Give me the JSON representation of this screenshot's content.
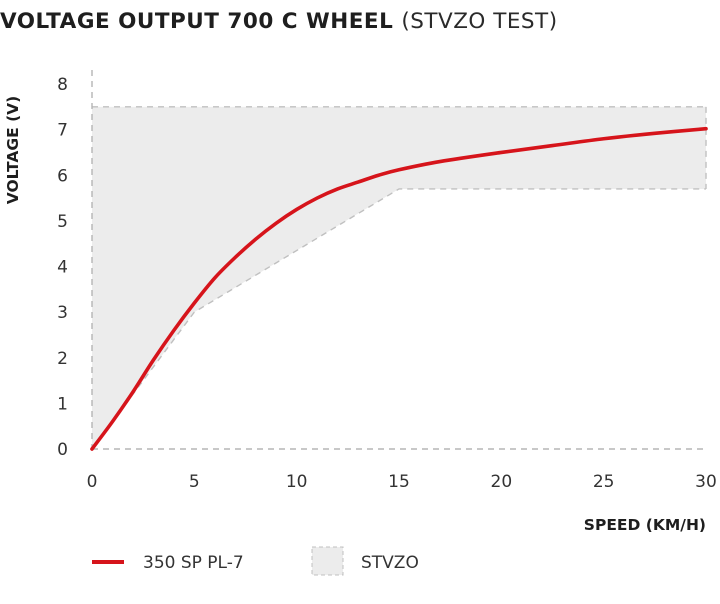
{
  "chart_data": {
    "type": "line",
    "title": "VOLTAGE OUTPUT 700 C WHEEL",
    "subtitle": "(STVZO TEST)",
    "xlabel": "SPEED (KM/H)",
    "ylabel": "VOLTAGE (V)",
    "xlim": [
      0,
      30
    ],
    "ylim": [
      0,
      8
    ],
    "xticks": [
      0,
      5,
      10,
      15,
      20,
      25,
      30
    ],
    "yticks": [
      0,
      1,
      2,
      3,
      4,
      5,
      6,
      7,
      8
    ],
    "grid": false,
    "legend_position": "bottom-left",
    "series": [
      {
        "name": "350 SP PL-7",
        "color": "#d6141b",
        "x": [
          0,
          1,
          2,
          3,
          4,
          5,
          6,
          7,
          8,
          9,
          10,
          11,
          12,
          13,
          14,
          15,
          17,
          20,
          22.5,
          25,
          27.5,
          30
        ],
        "y": [
          0,
          0.6,
          1.25,
          1.95,
          2.6,
          3.2,
          3.75,
          4.2,
          4.6,
          4.95,
          5.25,
          5.5,
          5.7,
          5.85,
          6.0,
          6.12,
          6.3,
          6.5,
          6.65,
          6.8,
          6.92,
          7.02
        ]
      }
    ],
    "band": {
      "name": "STVZO",
      "color": "#ececec",
      "border_color": "#c0c0c0",
      "upper": {
        "x": [
          0,
          30
        ],
        "y": [
          7.5,
          7.5
        ]
      },
      "lower": {
        "x": [
          0,
          5,
          15,
          30
        ],
        "y": [
          0,
          3.0,
          5.7,
          5.7
        ]
      }
    }
  }
}
